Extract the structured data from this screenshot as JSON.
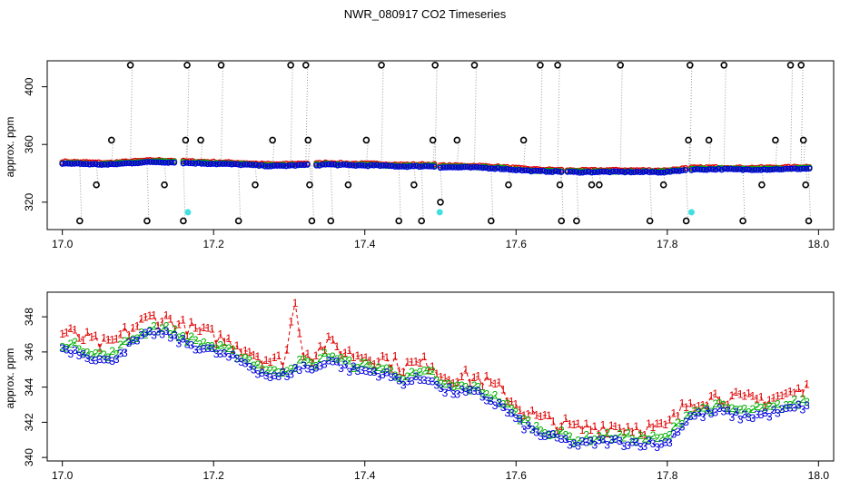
{
  "title": "NWR_080917  CO2 Timeseries",
  "chart_data": [
    {
      "type": "scatter",
      "ylabel": "approx. ppm",
      "xlabel": "",
      "xlim": [
        16.98,
        18.02
      ],
      "ylim": [
        301,
        418
      ],
      "xticks": [
        17.0,
        17.2,
        17.4,
        17.6,
        17.8,
        18.0
      ],
      "xtick_labels": [
        "17.0",
        "17.2",
        "17.4",
        "17.6",
        "17.8",
        "18.0"
      ],
      "yticks": [
        320,
        360,
        400
      ],
      "ytick_labels": [
        "320",
        "360",
        "400"
      ],
      "series": [
        {
          "name": "flagged (black)",
          "color": "#000000",
          "x": [
            17.023,
            17.045,
            17.065,
            17.09,
            17.112,
            17.135,
            17.16,
            17.163,
            17.165,
            17.183,
            17.21,
            17.233,
            17.255,
            17.278,
            17.302,
            17.322,
            17.325,
            17.327,
            17.33,
            17.355,
            17.378,
            17.402,
            17.422,
            17.445,
            17.465,
            17.475,
            17.49,
            17.493,
            17.5,
            17.522,
            17.545,
            17.567,
            17.59,
            17.61,
            17.632,
            17.655,
            17.658,
            17.66,
            17.68,
            17.7,
            17.71,
            17.738,
            17.777,
            17.795,
            17.825,
            17.828,
            17.83,
            17.855,
            17.875,
            17.9,
            17.925,
            17.943,
            17.963,
            17.977,
            17.98,
            17.983,
            17.987
          ],
          "y": [
            307,
            332,
            363,
            415,
            307,
            332,
            307,
            363,
            415,
            363,
            415,
            307,
            332,
            363,
            415,
            415,
            363,
            332,
            307,
            307,
            332,
            363,
            415,
            307,
            332,
            307,
            363,
            415,
            320,
            363,
            415,
            307,
            332,
            363,
            415,
            415,
            332,
            307,
            307,
            332,
            332,
            415,
            307,
            332,
            307,
            363,
            415,
            363,
            415,
            307,
            332,
            363,
            415,
            415,
            363,
            332,
            307
          ]
        },
        {
          "name": "cyan",
          "color": "#40e0e0",
          "x": [
            17.166,
            17.499,
            17.832
          ],
          "y": [
            313,
            313,
            313
          ]
        },
        {
          "name": "red",
          "color": "#e00000",
          "note": "dense near baseline"
        },
        {
          "name": "green",
          "color": "#00b000",
          "note": "dense near baseline"
        },
        {
          "name": "blue",
          "color": "#0000e0",
          "note": "dense near baseline"
        }
      ]
    },
    {
      "type": "line",
      "ylabel": "approx. ppm",
      "xlabel": "",
      "xlim": [
        16.98,
        18.02
      ],
      "ylim": [
        339.8,
        349.4
      ],
      "xticks": [
        17.0,
        17.2,
        17.4,
        17.6,
        17.8,
        18.0
      ],
      "xtick_labels": [
        "17.0",
        "17.2",
        "17.4",
        "17.6",
        "17.8",
        "18.0"
      ],
      "yticks": [
        340,
        342,
        344,
        346,
        348
      ],
      "ytick_labels": [
        "340",
        "342",
        "344",
        "346",
        "348"
      ],
      "baseline": {
        "x": [
          17.0,
          17.02,
          17.04,
          17.06,
          17.09,
          17.12,
          17.145,
          17.155,
          17.2,
          17.24,
          17.26,
          17.28,
          17.3,
          17.32,
          17.33,
          17.35,
          17.38,
          17.42,
          17.45,
          17.49,
          17.5,
          17.55,
          17.58,
          17.61,
          17.63,
          17.66,
          17.68,
          17.72,
          17.77,
          17.795,
          17.8,
          17.83,
          17.87,
          17.9,
          17.94,
          17.97,
          17.99
        ],
        "y": [
          346.2,
          346.0,
          345.7,
          345.4,
          346.4,
          347.1,
          346.9,
          346.6,
          346.0,
          345.4,
          344.9,
          344.5,
          344.8,
          345.2,
          344.9,
          345.6,
          345.0,
          344.8,
          344.3,
          344.5,
          343.8,
          343.6,
          342.9,
          341.8,
          341.3,
          341.0,
          340.7,
          340.9,
          340.8,
          340.7,
          340.9,
          342.3,
          342.6,
          342.3,
          342.5,
          342.8,
          343.0
        ],
        "spike": {
          "x": 17.307,
          "y": 348.9
        }
      },
      "series": [
        {
          "name": "1",
          "marker": "1",
          "color": "#e00000",
          "offset_ppm": 0.9
        },
        {
          "name": "2",
          "marker": "2",
          "color": "#00b000",
          "offset_ppm": 0.3
        },
        {
          "name": "3",
          "marker": "3",
          "color": "#0000e0",
          "offset_ppm": 0.0
        }
      ]
    }
  ]
}
